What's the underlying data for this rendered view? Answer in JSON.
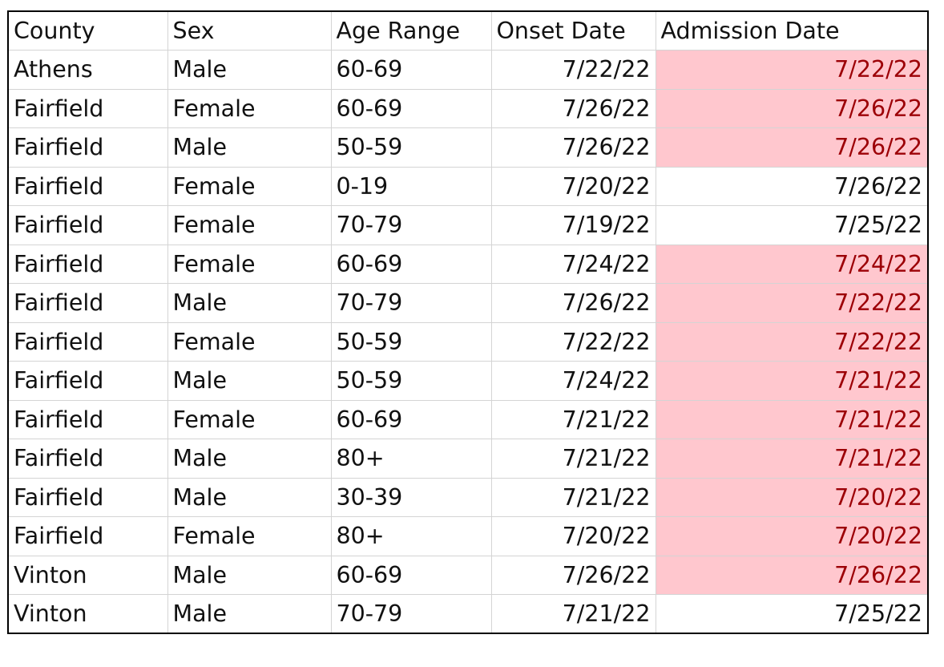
{
  "columns": [
    "County",
    "Sex",
    "Age Range",
    "Onset Date",
    "Admission Date"
  ],
  "rows": [
    {
      "county": "Athens",
      "sex": "Male",
      "age_range": "60-69",
      "onset_date": "7/22/22",
      "admission_date": "7/22/22",
      "highlighted": true
    },
    {
      "county": "Fairfield",
      "sex": "Female",
      "age_range": "60-69",
      "onset_date": "7/26/22",
      "admission_date": "7/26/22",
      "highlighted": true
    },
    {
      "county": "Fairfield",
      "sex": "Male",
      "age_range": "50-59",
      "onset_date": "7/26/22",
      "admission_date": "7/26/22",
      "highlighted": true
    },
    {
      "county": "Fairfield",
      "sex": "Female",
      "age_range": "0-19",
      "onset_date": "7/20/22",
      "admission_date": "7/26/22",
      "highlighted": false
    },
    {
      "county": "Fairfield",
      "sex": "Female",
      "age_range": "70-79",
      "onset_date": "7/19/22",
      "admission_date": "7/25/22",
      "highlighted": false
    },
    {
      "county": "Fairfield",
      "sex": "Female",
      "age_range": "60-69",
      "onset_date": "7/24/22",
      "admission_date": "7/24/22",
      "highlighted": true
    },
    {
      "county": "Fairfield",
      "sex": "Male",
      "age_range": "70-79",
      "onset_date": "7/26/22",
      "admission_date": "7/22/22",
      "highlighted": true
    },
    {
      "county": "Fairfield",
      "sex": "Female",
      "age_range": "50-59",
      "onset_date": "7/22/22",
      "admission_date": "7/22/22",
      "highlighted": true
    },
    {
      "county": "Fairfield",
      "sex": "Male",
      "age_range": "50-59",
      "onset_date": "7/24/22",
      "admission_date": "7/21/22",
      "highlighted": true
    },
    {
      "county": "Fairfield",
      "sex": "Female",
      "age_range": "60-69",
      "onset_date": "7/21/22",
      "admission_date": "7/21/22",
      "highlighted": true
    },
    {
      "county": "Fairfield",
      "sex": "Male",
      "age_range": "80+",
      "onset_date": "7/21/22",
      "admission_date": "7/21/22",
      "highlighted": true
    },
    {
      "county": "Fairfield",
      "sex": "Male",
      "age_range": "30-39",
      "onset_date": "7/21/22",
      "admission_date": "7/20/22",
      "highlighted": true
    },
    {
      "county": "Fairfield",
      "sex": "Female",
      "age_range": "80+",
      "onset_date": "7/20/22",
      "admission_date": "7/20/22",
      "highlighted": true
    },
    {
      "county": "Vinton",
      "sex": "Male",
      "age_range": "60-69",
      "onset_date": "7/26/22",
      "admission_date": "7/26/22",
      "highlighted": true
    },
    {
      "county": "Vinton",
      "sex": "Male",
      "age_range": "70-79",
      "onset_date": "7/21/22",
      "admission_date": "7/25/22",
      "highlighted": false
    }
  ],
  "colors": {
    "highlight_fill": "#ffc7ce",
    "highlight_text": "#9c0006",
    "gridline": "#d4d4d4",
    "border": "#000000"
  }
}
